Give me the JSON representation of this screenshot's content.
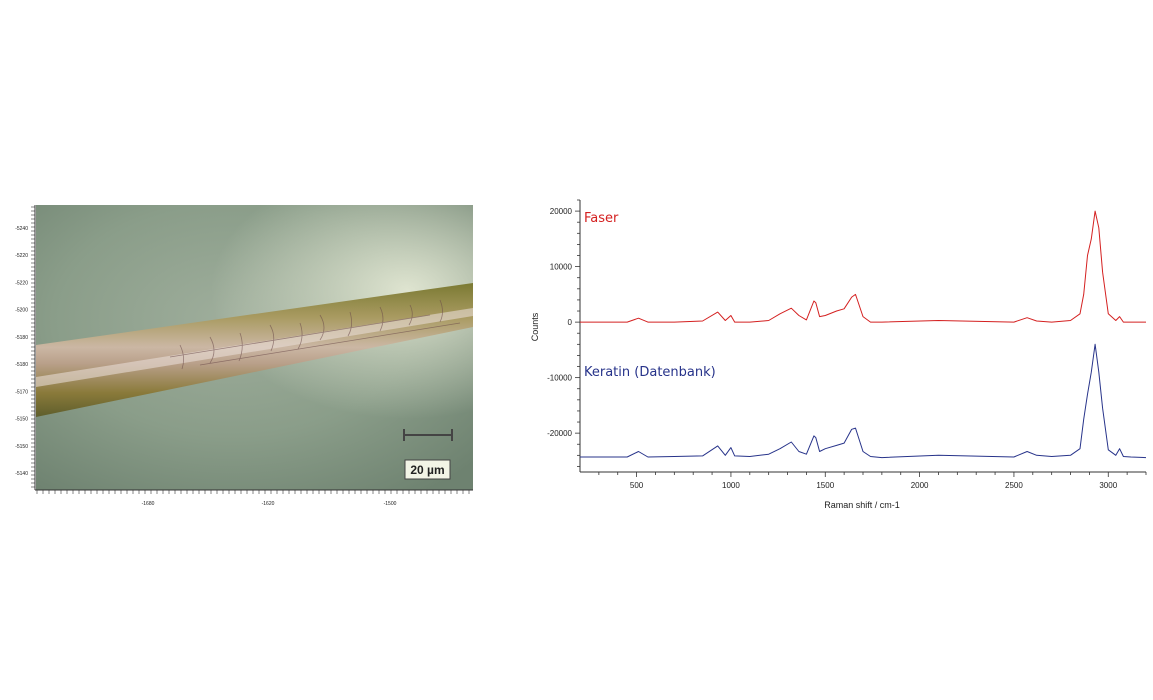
{
  "micrograph": {
    "y_tick_labels": [
      "-5240",
      "-5220",
      "-5220",
      "-5200",
      "-5180",
      "-5180",
      "-5170",
      "-5150",
      "-5150",
      "-5140"
    ],
    "x_tick_labels": [
      "-1680",
      "-1620",
      "-1500"
    ],
    "scale_bar_label": "20 µm"
  },
  "chart_data": {
    "type": "line",
    "title": "",
    "xlabel": "Raman shift / cm-1",
    "ylabel": "Counts",
    "xlim": [
      200,
      3200
    ],
    "ylim": [
      -27000,
      22000
    ],
    "x_ticks": [
      500,
      1000,
      1500,
      2000,
      2500,
      3000
    ],
    "y_ticks": [
      20000,
      10000,
      0,
      -10000,
      -20000
    ],
    "grid": false,
    "series": [
      {
        "name": "Faser",
        "color": "#d42020",
        "x": [
          200,
          450,
          510,
          560,
          700,
          850,
          930,
          970,
          1000,
          1020,
          1100,
          1200,
          1260,
          1320,
          1360,
          1400,
          1440,
          1450,
          1470,
          1500,
          1560,
          1600,
          1640,
          1660,
          1700,
          1740,
          1800,
          2100,
          2500,
          2570,
          2620,
          2700,
          2800,
          2850,
          2870,
          2890,
          2910,
          2930,
          2950,
          2970,
          3000,
          3040,
          3060,
          3080,
          3120,
          3200
        ],
        "y": [
          0,
          0,
          700,
          0,
          0,
          200,
          1800,
          300,
          1200,
          0,
          0,
          300,
          1500,
          2500,
          1200,
          400,
          3800,
          3500,
          1000,
          1200,
          2000,
          2400,
          4500,
          5000,
          1000,
          0,
          0,
          300,
          0,
          800,
          200,
          0,
          300,
          1500,
          5000,
          12000,
          15000,
          20000,
          17000,
          9000,
          1500,
          300,
          1000,
          0,
          0,
          0
        ]
      },
      {
        "name": "Keratin (Datenbank)",
        "color": "#27338a",
        "x": [
          200,
          450,
          510,
          560,
          700,
          850,
          930,
          970,
          1000,
          1020,
          1100,
          1200,
          1260,
          1320,
          1360,
          1400,
          1440,
          1450,
          1470,
          1500,
          1560,
          1600,
          1640,
          1660,
          1700,
          1740,
          1800,
          2100,
          2500,
          2570,
          2620,
          2700,
          2800,
          2850,
          2870,
          2890,
          2910,
          2930,
          2950,
          2970,
          3000,
          3040,
          3060,
          3080,
          3120,
          3200
        ],
        "y": [
          -24300,
          -24300,
          -23300,
          -24300,
          -24200,
          -24100,
          -22300,
          -24000,
          -22600,
          -24100,
          -24200,
          -23800,
          -22800,
          -21600,
          -23300,
          -23800,
          -20500,
          -20800,
          -23300,
          -22800,
          -22200,
          -21800,
          -19300,
          -19100,
          -23300,
          -24200,
          -24400,
          -24000,
          -24300,
          -23300,
          -24000,
          -24200,
          -24000,
          -22800,
          -17500,
          -13000,
          -9000,
          -4000,
          -9000,
          -15500,
          -23000,
          -24000,
          -22800,
          -24200,
          -24300,
          -24400
        ]
      }
    ]
  }
}
